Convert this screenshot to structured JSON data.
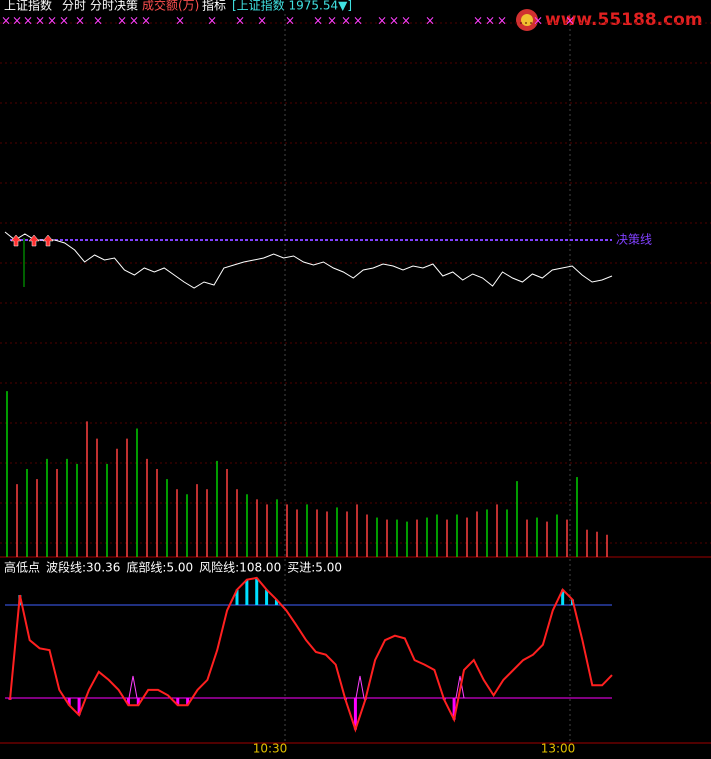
{
  "header": {
    "symbol": "上证指数",
    "tabs": [
      "分时",
      "分时决策",
      "成交额(万)",
      "指标"
    ],
    "quote": "[上证指数 1975.54▼]"
  },
  "watermark": "www.55188.com",
  "signal_mark": "×",
  "time_labels": [
    "10:30",
    "13:00"
  ],
  "chart_data": [
    {
      "type": "line",
      "color": "#ffffff",
      "ylim": [
        1965.5,
        2002
      ],
      "reference_line": {
        "label": "决策线",
        "value": 1980,
        "color": "#8040ff"
      },
      "values": [
        1980.8,
        1980,
        1980.6,
        1980,
        1980,
        1980,
        1979.7,
        1979,
        1977.8,
        1978.5,
        1978,
        1978.2,
        1977,
        1976.5,
        1977.2,
        1976.8,
        1977.2,
        1976.5,
        1975.8,
        1975.2,
        1975.8,
        1975.5,
        1977.2,
        1977.5,
        1977.8,
        1978,
        1978.2,
        1978.6,
        1978.2,
        1978.4,
        1977.8,
        1977.5,
        1977.8,
        1977.2,
        1976.8,
        1976.2,
        1977,
        1977.2,
        1977.6,
        1977.4,
        1977,
        1977.4,
        1977.2,
        1977.6,
        1976.4,
        1976.8,
        1976,
        1976.6,
        1976.2,
        1975.4,
        1976.8,
        1976.2,
        1975.8,
        1976.6,
        1976.2,
        1977,
        1977.2,
        1977.4,
        1976.5,
        1975.8,
        1976,
        1976.4
      ]
    },
    {
      "type": "bar",
      "ylim": [
        0,
        170
      ],
      "colors": [
        "#ff4040",
        "#00d000"
      ],
      "color_index": [
        1,
        0,
        1,
        0,
        1,
        0,
        1,
        1,
        0,
        0,
        1,
        0,
        0,
        1,
        0,
        0,
        1,
        0,
        1,
        0,
        0,
        1,
        0,
        0,
        1,
        0,
        0,
        1,
        0,
        0,
        1,
        0,
        0,
        1,
        0,
        0,
        0,
        1,
        0,
        1,
        1,
        0,
        1,
        1,
        0,
        1,
        0,
        0,
        1,
        0,
        1,
        1,
        0,
        1,
        0,
        1,
        0,
        1,
        0,
        0,
        0
      ],
      "values": [
        164,
        72,
        87,
        77,
        97,
        87,
        97,
        92,
        134,
        117,
        92,
        107,
        117,
        127,
        97,
        87,
        77,
        67,
        62,
        72,
        67,
        95,
        87,
        67,
        62,
        57,
        52,
        57,
        52,
        47,
        52,
        47,
        45,
        49,
        45,
        52,
        42,
        39,
        37,
        37,
        35,
        37,
        39,
        42,
        37,
        42,
        39,
        45,
        47,
        52,
        47,
        75,
        37,
        39,
        35,
        42,
        37,
        79,
        27,
        25,
        22
      ]
    },
    {
      "type": "line",
      "title": "高低点",
      "readouts": [
        "波段线:30.36",
        "底部线:5.00",
        "风险线:108.00",
        "买进:5.00"
      ],
      "color": "#ff2020",
      "ylim": [
        -42,
        154
      ],
      "risk_line": {
        "value": 108,
        "color": "#4060ff"
      },
      "bottom_line": {
        "value": 5,
        "color": "#ff00ff"
      },
      "values": [
        3,
        119,
        69,
        60,
        58,
        14,
        -3,
        -14,
        14,
        34,
        25,
        14,
        -3,
        -3,
        14,
        14,
        8,
        -3,
        -3,
        14,
        25,
        58,
        102,
        125,
        136,
        138,
        125,
        114,
        102,
        86,
        69,
        56,
        53,
        42,
        3,
        -30,
        3,
        47,
        69,
        74,
        71,
        47,
        42,
        36,
        3,
        -19,
        36,
        47,
        25,
        8,
        25,
        36,
        47,
        53,
        64,
        102,
        125,
        114,
        69,
        19,
        19,
        30.36
      ]
    }
  ]
}
